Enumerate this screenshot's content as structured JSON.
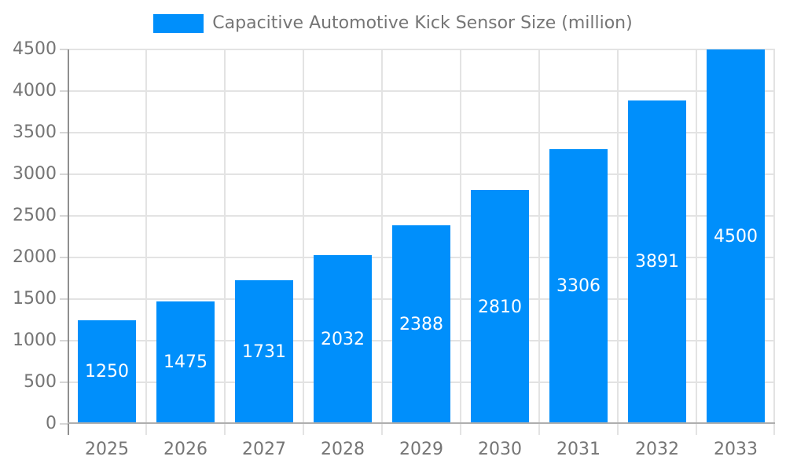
{
  "chart_data": {
    "type": "bar",
    "title": "Capacitive Automotive Kick Sensor Size (million)",
    "categories": [
      "2025",
      "2026",
      "2027",
      "2028",
      "2029",
      "2030",
      "2031",
      "2032",
      "2033"
    ],
    "values": [
      1250,
      1475,
      1731,
      2032,
      2388,
      2810,
      3306,
      3891,
      4500
    ],
    "y_ticks": [
      0,
      500,
      1000,
      1500,
      2000,
      2500,
      3000,
      3500,
      4000,
      4500
    ],
    "ylim": [
      0,
      4500
    ],
    "xlabel": "",
    "ylabel": "",
    "grid": true,
    "legend_position": "top-center",
    "bar_value_labels": [
      "1250",
      "1475",
      "1731",
      "2032",
      "2388",
      "2810",
      "3306",
      "3891",
      "4500"
    ],
    "colors": {
      "bar": "#008FFB",
      "bar_label_text": "#ffffff",
      "axis_text": "#757575",
      "gridline": "#e3e3e3",
      "axis_line": "#8f8f8f",
      "baseline": "#aeaeae",
      "background": "#ffffff"
    }
  }
}
